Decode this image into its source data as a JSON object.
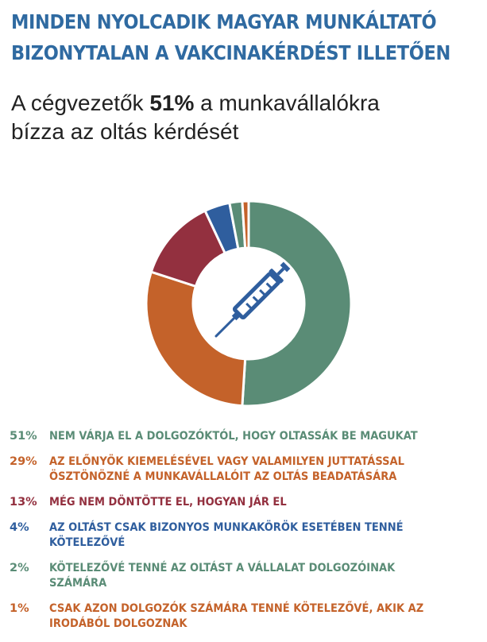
{
  "header": {
    "title_line1": "MINDEN NYOLCADIK MAGYAR MUNKÁLTATÓ",
    "title_line2": "BIZONYTALAN A VAKCINAKÉRDÉST ILLETŐEN",
    "subtitle_pre": "A cégvezetők ",
    "subtitle_bold": "51%",
    "subtitle_post": " a munkavállalókra",
    "subtitle_line2": "bízza az oltás kérdését"
  },
  "chart_data": {
    "type": "pie",
    "center_icon": "syringe-icon",
    "values": [
      51,
      29,
      13,
      4,
      2,
      1
    ],
    "value_labels": [
      "51%",
      "29%",
      "13%",
      "4%",
      "2%",
      "1%"
    ],
    "categories": [
      "NEM VÁRJA EL A DOLGOZÓKTÓL, HOGY OLTASSÁK BE MAGUKAT",
      "AZ ELŐNYÖK KIEMELÉSÉVEL VAGY VALAMILYEN JUTTATÁSSAL ÖSZTÖNÖZNÉ A MUNKAVÁLLALÓIT AZ OLTÁS BEADATÁSÁRA",
      "MÉG NEM DÖNTÖTTE EL, HOGYAN JÁR EL",
      "AZ OLTÁST CSAK BIZONYOS MUNKAKÖRÖK ESETÉBEN TENNÉ KÖTELEZŐVÉ",
      "KÖTELEZŐVÉ TENNÉ AZ OLTÁST A VÁLLALAT DOLGOZÓINAK SZÁMÁRA",
      "CSAK AZON DOLGOZÓK SZÁMÁRA TENNÉ KÖTELEZŐVÉ, AKIK AZ IRODÁBÓL DOLGOZNAK"
    ],
    "label_lines": [
      [
        "NEM VÁRJA EL A DOLGOZÓKTÓL, HOGY OLTASSÁK BE MAGUKAT"
      ],
      [
        "AZ ELŐNYÖK KIEMELÉSÉVEL VAGY VALAMILYEN JUTTATÁSSAL",
        "ÖSZTÖNÖZNÉ A MUNKAVÁLLALÓIT AZ OLTÁS BEADATÁSÁRA"
      ],
      [
        "MÉG NEM DÖNTÖTTE EL, HOGYAN JÁR EL"
      ],
      [
        "AZ OLTÁST CSAK BIZONYOS MUNKAKÖRÖK ESETÉBEN TENNÉ KÖTELEZŐVÉ"
      ],
      [
        "KÖTELEZŐVÉ TENNÉ AZ OLTÁST A VÁLLALAT DOLGOZÓINAK SZÁMÁRA"
      ],
      [
        "CSAK AZON DOLGOZÓK SZÁMÁRA TENNÉ KÖTELEZŐVÉ, AKIK AZ",
        "IRODÁBÓL DOLGOZNAK"
      ]
    ],
    "colors": [
      "#5a8c76",
      "#c4622a",
      "#93303f",
      "#2f5e9e",
      "#5a8c76",
      "#c4622a"
    ],
    "legend_position": "bottom"
  },
  "colors": {
    "title": "#2f6aa1",
    "icon": "#2f5e9e"
  }
}
